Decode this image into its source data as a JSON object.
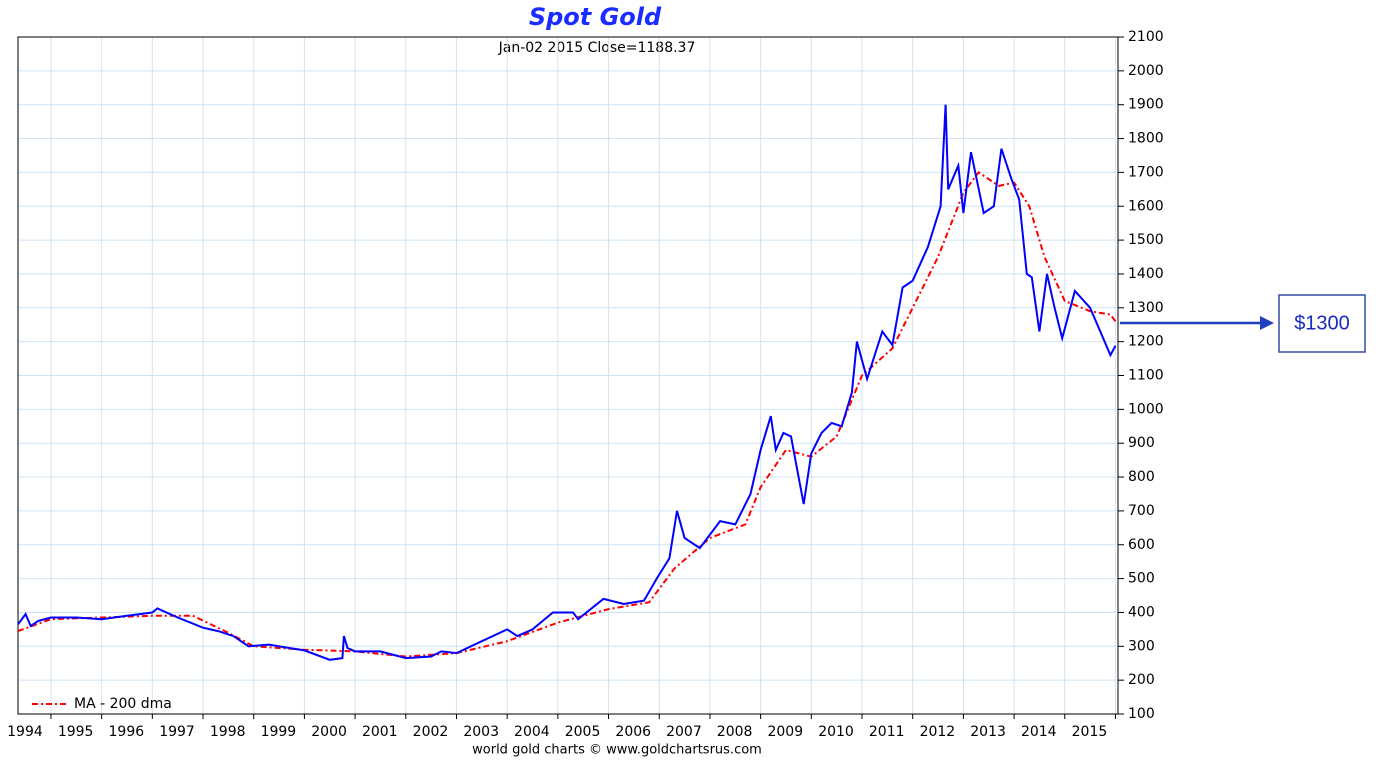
{
  "chart_data": {
    "type": "line",
    "title": "Spot Gold",
    "subtitle": "Jan-02 2015 Close=1188.37",
    "footer": "world gold charts © www.goldchartsrus.com",
    "annotation": "$1300",
    "xlim": [
      1993.35,
      2015.05
    ],
    "xticks": [
      1994,
      1995,
      1996,
      1997,
      1998,
      1999,
      2000,
      2001,
      2002,
      2003,
      2004,
      2005,
      2006,
      2007,
      2008,
      2009,
      2010,
      2011,
      2012,
      2013,
      2014,
      2015
    ],
    "ylim": [
      100,
      2100
    ],
    "yticks": [
      100,
      200,
      300,
      400,
      500,
      600,
      700,
      800,
      900,
      1000,
      1100,
      1200,
      1300,
      1400,
      1500,
      1600,
      1700,
      1800,
      1900,
      2000,
      2100
    ],
    "grid": true,
    "legend": "lower left",
    "series": [
      {
        "name": "Spot Gold",
        "color": "#0000ff",
        "dash": false,
        "x": [
          1993.35,
          1993.5,
          1993.6,
          1993.75,
          1994.0,
          1994.5,
          1995.0,
          1995.5,
          1996.0,
          1996.1,
          1996.5,
          1997.0,
          1997.3,
          1997.6,
          1997.9,
          1998.3,
          1998.7,
          1999.0,
          1999.5,
          1999.75,
          1999.78,
          1999.85,
          2000.0,
          2000.5,
          2001.0,
          2001.5,
          2001.7,
          2002.0,
          2002.5,
          2003.0,
          2003.2,
          2003.5,
          2003.9,
          2004.3,
          2004.4,
          2004.9,
          2005.3,
          2005.7,
          2005.95,
          2006.2,
          2006.35,
          2006.5,
          2006.8,
          2007.2,
          2007.5,
          2007.8,
          2008.0,
          2008.2,
          2008.3,
          2008.45,
          2008.6,
          2008.75,
          2008.85,
          2009.0,
          2009.2,
          2009.4,
          2009.6,
          2009.8,
          2009.9,
          2010.1,
          2010.4,
          2010.6,
          2010.8,
          2011.0,
          2011.3,
          2011.55,
          2011.65,
          2011.7,
          2011.9,
          2012.0,
          2012.15,
          2012.4,
          2012.6,
          2012.75,
          2012.95,
          2013.1,
          2013.25,
          2013.35,
          2013.5,
          2013.65,
          2013.8,
          2013.95,
          2014.2,
          2014.5,
          2014.7,
          2014.9,
          2015.0
        ],
        "values": [
          365,
          395,
          360,
          375,
          385,
          385,
          380,
          390,
          400,
          412,
          385,
          355,
          345,
          330,
          300,
          305,
          295,
          288,
          260,
          265,
          330,
          295,
          285,
          285,
          265,
          270,
          285,
          280,
          315,
          350,
          330,
          350,
          400,
          400,
          380,
          440,
          425,
          435,
          500,
          560,
          700,
          620,
          590,
          670,
          660,
          750,
          880,
          980,
          880,
          930,
          920,
          800,
          720,
          870,
          930,
          960,
          950,
          1050,
          1200,
          1090,
          1230,
          1190,
          1360,
          1380,
          1480,
          1600,
          1900,
          1650,
          1720,
          1580,
          1760,
          1580,
          1600,
          1770,
          1680,
          1620,
          1400,
          1390,
          1230,
          1400,
          1300,
          1210,
          1350,
          1300,
          1230,
          1160,
          1188
        ]
      },
      {
        "name": "MA - 200 dma",
        "color": "#ff0000",
        "dash": true,
        "x": [
          1993.35,
          1994.0,
          1995.0,
          1996.0,
          1996.8,
          1997.5,
          1998.0,
          1999.0,
          2000.0,
          2001.0,
          2002.0,
          2003.0,
          2004.0,
          2005.0,
          2005.8,
          2006.3,
          2007.0,
          2007.7,
          2008.0,
          2008.5,
          2009.0,
          2009.5,
          2010.0,
          2010.6,
          2011.0,
          2011.5,
          2012.0,
          2012.3,
          2012.7,
          2013.0,
          2013.3,
          2013.6,
          2014.0,
          2014.5,
          2014.9,
          2015.0
        ],
        "values": [
          345,
          380,
          385,
          390,
          390,
          340,
          300,
          290,
          285,
          270,
          280,
          315,
          370,
          410,
          430,
          530,
          620,
          660,
          770,
          880,
          860,
          920,
          1100,
          1180,
          1300,
          1450,
          1640,
          1700,
          1660,
          1670,
          1600,
          1450,
          1320,
          1290,
          1280,
          1260
        ]
      }
    ]
  }
}
